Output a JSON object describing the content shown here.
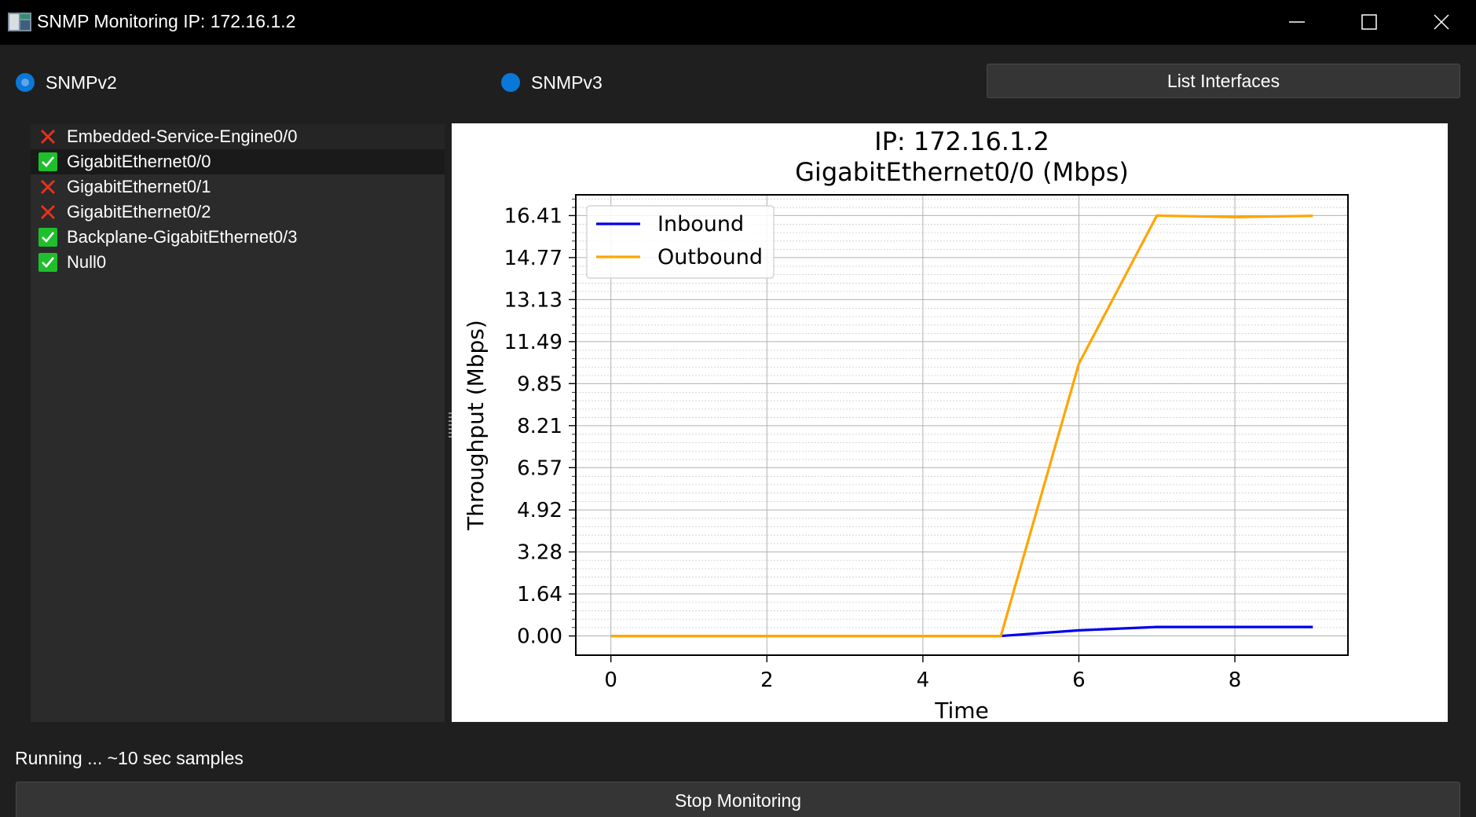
{
  "window": {
    "title": "SNMP Monitoring IP: 172.16.1.2"
  },
  "protocol": {
    "options": [
      {
        "label": "SNMPv2",
        "selected": true
      },
      {
        "label": "SNMPv3",
        "selected": false
      }
    ]
  },
  "toolbar": {
    "list_interfaces_label": "List Interfaces"
  },
  "interfaces": [
    {
      "name": "Embedded-Service-Engine0/0",
      "status": "down",
      "icon": "cross-icon"
    },
    {
      "name": "GigabitEthernet0/0",
      "status": "up",
      "icon": "check-icon",
      "selected": true
    },
    {
      "name": "GigabitEthernet0/1",
      "status": "down",
      "icon": "cross-icon"
    },
    {
      "name": "GigabitEthernet0/2",
      "status": "down",
      "icon": "cross-icon"
    },
    {
      "name": "Backplane-GigabitEthernet0/3",
      "status": "up",
      "icon": "check-icon"
    },
    {
      "name": "Null0",
      "status": "up",
      "icon": "check-icon"
    }
  ],
  "chart_data": {
    "type": "line",
    "title": "IP: 172.16.1.2",
    "subtitle": "GigabitEthernet0/0 (Mbps)",
    "xlabel": "Time",
    "ylabel": "Throughput (Mbps)",
    "x": [
      0,
      1,
      2,
      3,
      4,
      5,
      6,
      7,
      8,
      9
    ],
    "x_ticks": [
      "0",
      "2",
      "4",
      "6",
      "8"
    ],
    "x_tick_values": [
      0,
      2,
      4,
      6,
      8
    ],
    "xlim": [
      -0.45,
      9.45
    ],
    "y_ticks": [
      "0.00",
      "1.64",
      "3.28",
      "4.92",
      "6.57",
      "8.21",
      "9.85",
      "11.49",
      "13.13",
      "14.77",
      "16.41"
    ],
    "y_tick_values": [
      0,
      1.64,
      3.28,
      4.92,
      6.57,
      8.21,
      9.85,
      11.49,
      13.13,
      14.77,
      16.41
    ],
    "ylim": [
      -0.75,
      17.22
    ],
    "grid": true,
    "legend_position": "top-left",
    "series": [
      {
        "name": "Inbound",
        "color": "#0000ee",
        "values": [
          0,
          0,
          0,
          0,
          0,
          0,
          0.22,
          0.35,
          0.35,
          0.35
        ]
      },
      {
        "name": "Outbound",
        "color": "#ffa500",
        "values": [
          0,
          0,
          0,
          0,
          0,
          0,
          10.63,
          16.41,
          16.35,
          16.4
        ]
      }
    ]
  },
  "status": {
    "text": "Running ... ~10 sec samples"
  },
  "footer": {
    "stop_label": "Stop Monitoring"
  },
  "colors": {
    "accent": "#0a78d7",
    "up": "#1fbf2b",
    "down": "#e8321e"
  }
}
